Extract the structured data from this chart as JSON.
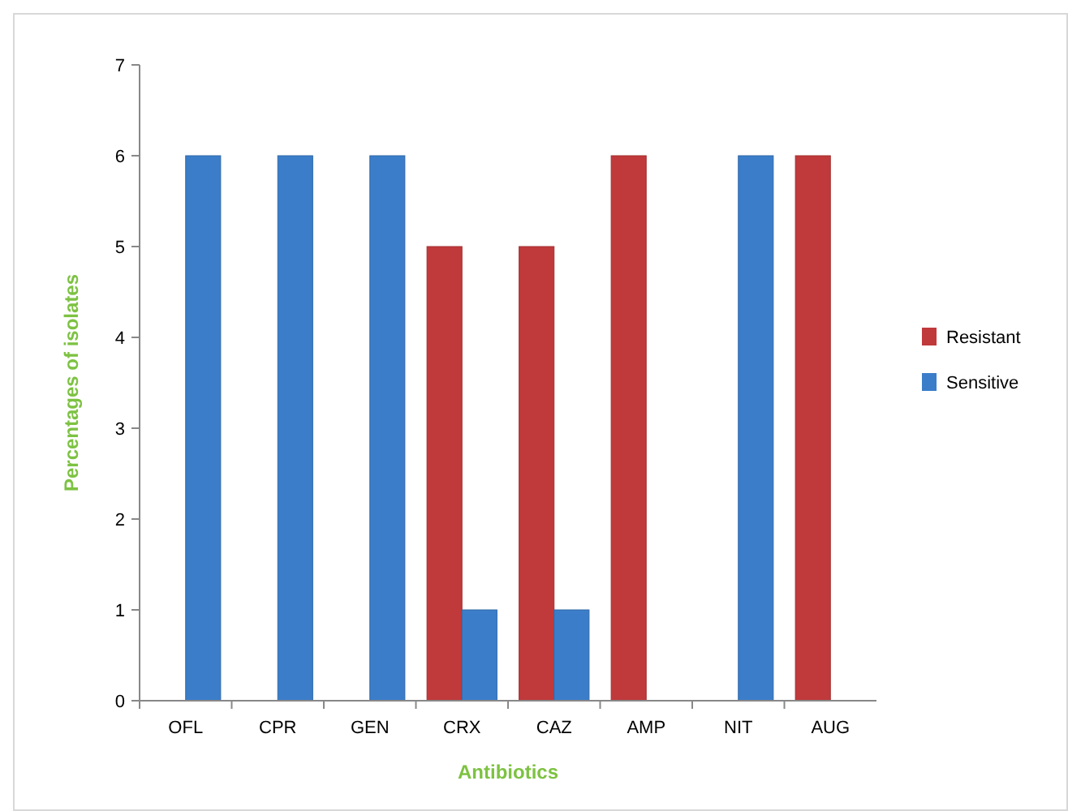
{
  "chart_data": {
    "type": "bar",
    "xlabel": "Antibiotics",
    "ylabel": "Percentages of isolates",
    "categories": [
      "OFL",
      "CPR",
      "GEN",
      "CRX",
      "CAZ",
      "AMP",
      "NIT",
      "AUG"
    ],
    "series": [
      {
        "name": "Resistant",
        "color": "#c0393b",
        "values": [
          0,
          0,
          0,
          5,
          5,
          6,
          0,
          6
        ]
      },
      {
        "name": "Sensitive",
        "color": "#3b7dc9",
        "values": [
          6,
          6,
          6,
          1,
          1,
          0,
          6,
          0
        ]
      }
    ],
    "ylim": [
      0,
      7
    ],
    "yticks": [
      0,
      1,
      2,
      3,
      4,
      5,
      6,
      7
    ],
    "grid": false,
    "legend": "right"
  }
}
